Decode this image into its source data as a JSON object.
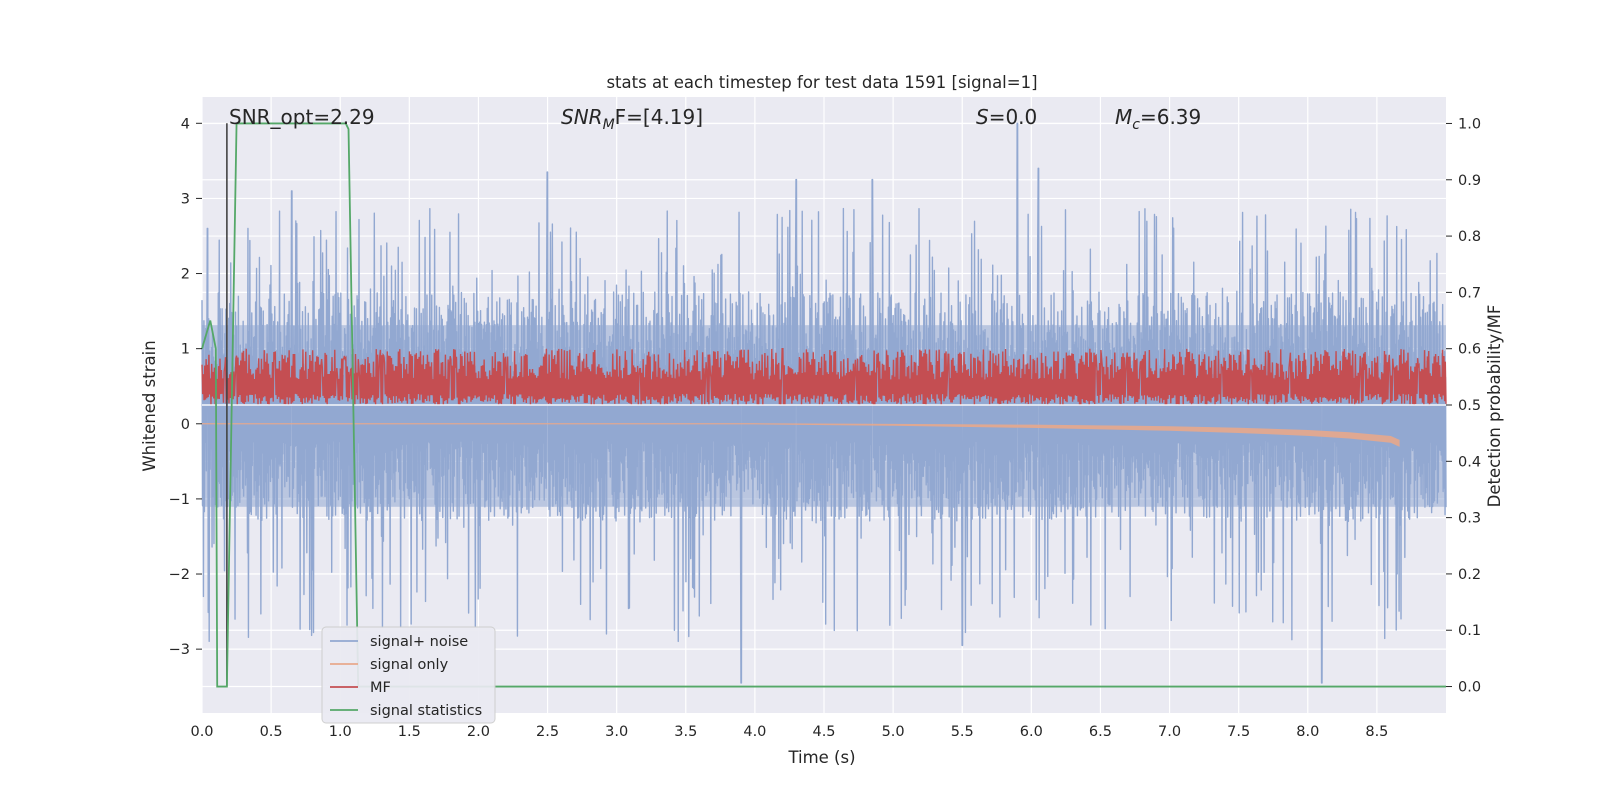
{
  "chart_data": {
    "type": "line",
    "title": "stats at each timestep for test data 1591 [signal=1]",
    "xlabel": "Time (s)",
    "ylabel": "Whitened strain",
    "y2label": "Detection probability/MF",
    "xlim": [
      0,
      9.0
    ],
    "ylim": [
      -3.85,
      4.35
    ],
    "y2lim": [
      -0.047,
      1.047
    ],
    "grid": true,
    "legend_position": "lower-left",
    "xticks": [
      "0.0",
      "0.5",
      "1.0",
      "1.5",
      "2.0",
      "2.5",
      "3.0",
      "3.5",
      "4.0",
      "4.5",
      "5.0",
      "5.5",
      "6.0",
      "6.5",
      "7.0",
      "7.5",
      "8.0",
      "8.5"
    ],
    "yticks": [
      "−3",
      "−2",
      "−1",
      "0",
      "1",
      "2",
      "3",
      "4"
    ],
    "y2ticks": [
      "0.0",
      "0.1",
      "0.2",
      "0.3",
      "0.4",
      "0.5",
      "0.6",
      "0.7",
      "0.8",
      "0.9",
      "1.0"
    ],
    "annotations": {
      "snr_opt": "SNR_opt=2.29",
      "snr_mf_base": "SNR",
      "snr_mf_sub": "M",
      "snr_mf_rest": "F=[4.19]",
      "s_var": "S",
      "s_rest": "=0.0",
      "mc_base": "M",
      "mc_sub": "c",
      "mc_rest": "=6.39"
    },
    "series": [
      {
        "name": "signal+ noise",
        "color": "#92a8d1",
        "envelope": {
          "core_low": -1.3,
          "core_high": 1.75,
          "peak_low": -3.45,
          "peak_high": 4.0
        },
        "notable_peaks": [
          {
            "x": 0.04,
            "y": 2.6
          },
          {
            "x": 0.65,
            "y": 3.1
          },
          {
            "x": 2.5,
            "y": 3.35
          },
          {
            "x": 4.3,
            "y": 3.25
          },
          {
            "x": 4.85,
            "y": 3.25
          },
          {
            "x": 5.9,
            "y": 4.0
          },
          {
            "x": 6.05,
            "y": 3.4
          },
          {
            "x": 3.9,
            "y": -3.45
          },
          {
            "x": 8.1,
            "y": -3.45
          },
          {
            "x": 5.5,
            "y": -2.95
          }
        ]
      },
      {
        "name": "signal only",
        "color": "#e8a98c",
        "x": [
          0,
          4.0,
          5.0,
          6.0,
          7.0,
          7.5,
          8.0,
          8.3,
          8.6,
          8.66
        ],
        "y": [
          0.0,
          0.0,
          -0.01,
          -0.02,
          -0.04,
          -0.06,
          -0.09,
          -0.12,
          -0.17,
          -0.22
        ]
      },
      {
        "name": "MF",
        "color": "#c44e52",
        "axis": "right",
        "band": {
          "low": 0.5,
          "high": 0.6
        },
        "notable_peaks": [
          {
            "x": 4.2,
            "y": 0.6
          },
          {
            "x": 5.4,
            "y": 0.59
          }
        ]
      },
      {
        "name": "signal statistics",
        "color": "#55a868",
        "axis": "right",
        "x": [
          0,
          0.06,
          0.1,
          0.11,
          0.18,
          0.25,
          1.0,
          1.04,
          1.06,
          1.13,
          9.0
        ],
        "y": [
          0.6,
          0.65,
          0.6,
          0.0,
          0.0,
          1.0,
          1.0,
          1.0,
          0.99,
          0.0,
          0.0
        ]
      }
    ],
    "vertical_marker": {
      "x": 0.18,
      "color": "#444444"
    }
  }
}
